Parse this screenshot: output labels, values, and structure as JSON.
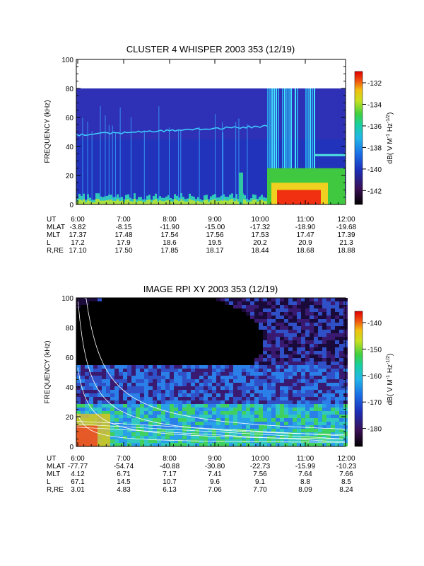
{
  "chart_data": [
    {
      "type": "heatmap",
      "title": "CLUSTER 4 WHISPER 2003 353 (12/19)",
      "ylabel": "FREQUENCY (kHz)",
      "ylim": [
        0,
        100
      ],
      "yticks": [
        "0",
        "20",
        "40",
        "60",
        "80",
        "100"
      ],
      "xticks": [
        "6:00",
        "7:00",
        "8:00",
        "9:00",
        "10:00",
        "11:00",
        "12:00"
      ],
      "colorbar_label": "dB( V M",
      "colorbar_label_sup1": "-1",
      "colorbar_label_mid": " Hz",
      "colorbar_label_sup2": "-1/2",
      "colorbar_label_end": ")",
      "colorbar_ticks": [
        "-132",
        "-134",
        "-136",
        "-138",
        "-140",
        "-142"
      ],
      "ephemeris": [
        {
          "label": "UT",
          "values": [
            "6:00",
            "7:00",
            "8:00",
            "9:00",
            "10:00",
            "11:00",
            "12:00"
          ]
        },
        {
          "label": "MLAT",
          "values": [
            "-3.82",
            "-8.15",
            "-11.90",
            "-15.00",
            "-17.32",
            "-18.90",
            "-19.68"
          ]
        },
        {
          "label": "MLT",
          "values": [
            "17.37",
            "17.48",
            "17.54",
            "17.56",
            "17.53",
            "17.47",
            "17.39"
          ]
        },
        {
          "label": "L",
          "values": [
            "17.2",
            "17.9",
            "18.6",
            "19.5",
            "20.2",
            "20.9",
            "21.3"
          ]
        },
        {
          "label": "R,RE",
          "values": [
            "17.10",
            "17.50",
            "17.85",
            "18.17",
            "18.44",
            "18.68",
            "18.88"
          ]
        }
      ]
    },
    {
      "type": "heatmap",
      "title": "IMAGE RPI XY 2003 353 (12/19)",
      "ylabel": "FREQUENCY (kHz)",
      "ylim": [
        0,
        100
      ],
      "yticks": [
        "0",
        "20",
        "40",
        "60",
        "80",
        "100"
      ],
      "xticks": [
        "6:00",
        "7:00",
        "8:00",
        "9:00",
        "10:00",
        "11:00",
        "12:00"
      ],
      "colorbar_label": "dB( V M",
      "colorbar_label_sup1": "-1",
      "colorbar_label_mid": " Hz",
      "colorbar_label_sup2": "-1/2",
      "colorbar_label_end": ")",
      "colorbar_ticks": [
        "-140",
        "-150",
        "-160",
        "-170",
        "-180"
      ],
      "ephemeris": [
        {
          "label": "UT",
          "values": [
            "6:00",
            "7:00",
            "8:00",
            "9:00",
            "10:00",
            "11:00",
            "12:00"
          ]
        },
        {
          "label": "MLAT",
          "values": [
            "-77.77",
            "-54.74",
            "-40.88",
            "-30.80",
            "-22.73",
            "-15.99",
            "-10.23"
          ]
        },
        {
          "label": "MLT",
          "values": [
            "4.12",
            "6.71",
            "7.17",
            "7.41",
            "7.56",
            "7.64",
            "7.66"
          ]
        },
        {
          "label": "L",
          "values": [
            "67.1",
            "14.5",
            "10.7",
            "9.6",
            "9.1",
            "8.8",
            "8.5"
          ]
        },
        {
          "label": "R,RE",
          "values": [
            "3.01",
            "4.83",
            "6.13",
            "7.06",
            "7.70",
            "8.09",
            "8.24"
          ]
        }
      ]
    }
  ]
}
